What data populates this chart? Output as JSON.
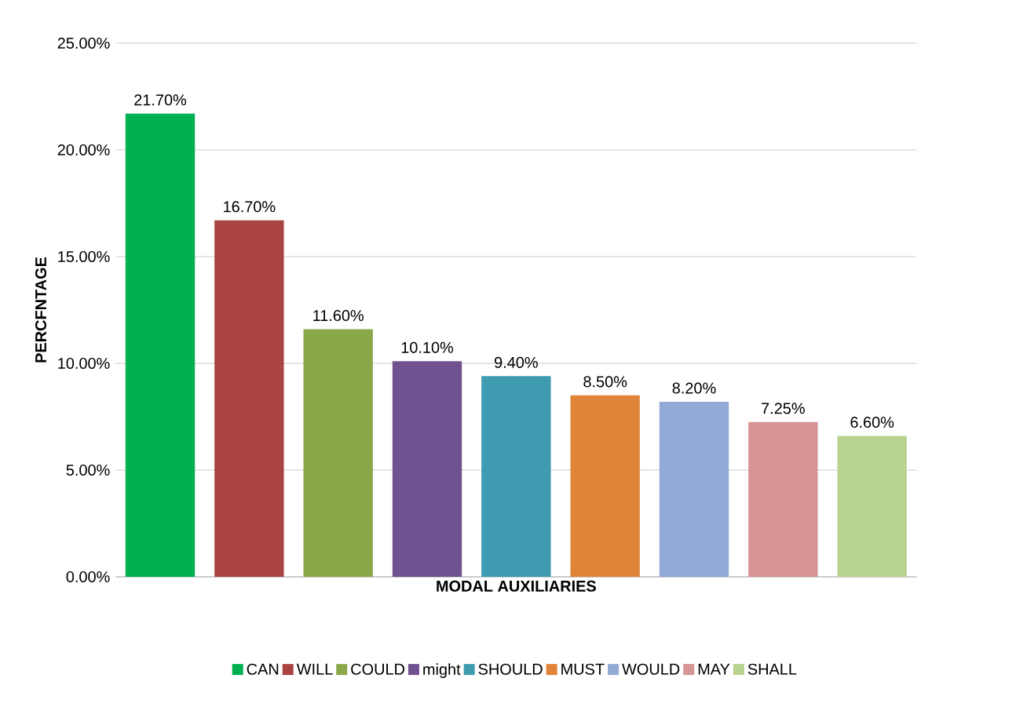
{
  "chart_data": {
    "type": "bar",
    "xlabel": "MODAL AUXILIARIES",
    "ylabel": "PERCFNTAGE",
    "categories": [
      null,
      null,
      null,
      null,
      null,
      null,
      null,
      null,
      null
    ],
    "series": [
      {
        "name": "CAN",
        "color": "#00b050",
        "values": [
          21.7,
          null,
          null,
          null,
          null,
          null,
          null,
          null,
          null
        ],
        "value_labels": [
          "21.70%",
          null,
          null,
          null,
          null,
          null,
          null,
          null,
          null
        ]
      },
      {
        "name": "WILL",
        "color": "#a94442",
        "values": [
          null,
          16.7,
          null,
          null,
          null,
          null,
          null,
          null,
          null
        ],
        "value_labels": [
          null,
          "16.70%",
          null,
          null,
          null,
          null,
          null,
          null,
          null
        ]
      },
      {
        "name": "COULD",
        "color": "#8aa84a",
        "values": [
          null,
          null,
          11.6,
          null,
          null,
          null,
          null,
          null,
          null
        ],
        "value_labels": [
          null,
          null,
          "11.60%",
          null,
          null,
          null,
          null,
          null,
          null
        ]
      },
      {
        "name": "might",
        "color": "#6f528f",
        "values": [
          null,
          null,
          null,
          10.1,
          null,
          null,
          null,
          null,
          null
        ],
        "value_labels": [
          null,
          null,
          null,
          "10.10%",
          null,
          null,
          null,
          null,
          null
        ]
      },
      {
        "name": "SHOULD",
        "color": "#3e9bb0",
        "values": [
          null,
          null,
          null,
          null,
          9.4,
          null,
          null,
          null,
          null
        ],
        "value_labels": [
          null,
          null,
          null,
          null,
          "9.40%",
          null,
          null,
          null,
          null
        ]
      },
      {
        "name": "MUST",
        "color": "#e0843a",
        "values": [
          null,
          null,
          null,
          null,
          null,
          8.5,
          null,
          null,
          null
        ],
        "value_labels": [
          null,
          null,
          null,
          null,
          null,
          "8.50%",
          null,
          null,
          null
        ]
      },
      {
        "name": "WOULD",
        "color": "#93a9d6",
        "values": [
          null,
          null,
          null,
          null,
          null,
          null,
          8.2,
          null,
          null
        ],
        "value_labels": [
          null,
          null,
          null,
          null,
          null,
          null,
          "8.20%",
          null,
          null
        ]
      },
      {
        "name": "MAY",
        "color": "#d69494",
        "values": [
          null,
          null,
          null,
          null,
          null,
          null,
          null,
          7.25,
          null
        ],
        "value_labels": [
          null,
          null,
          null,
          null,
          null,
          null,
          null,
          "7.25%",
          null
        ]
      },
      {
        "name": "SHALL",
        "color": "#b8d38f",
        "values": [
          null,
          null,
          null,
          null,
          null,
          null,
          null,
          null,
          6.6
        ],
        "value_labels": [
          null,
          null,
          null,
          null,
          null,
          null,
          null,
          null,
          "6.60%"
        ]
      }
    ],
    "ylim": [
      0,
      25
    ],
    "yticks": [
      {
        "value": 0,
        "label": "0.00%"
      },
      {
        "value": 5,
        "label": "5.00%"
      },
      {
        "value": 10,
        "label": "10.00%"
      },
      {
        "value": 15,
        "label": "15.00%"
      },
      {
        "value": 20,
        "label": "20.00%"
      },
      {
        "value": 25,
        "label": "25.00%"
      }
    ],
    "grid": "y",
    "legend": "bottom"
  }
}
